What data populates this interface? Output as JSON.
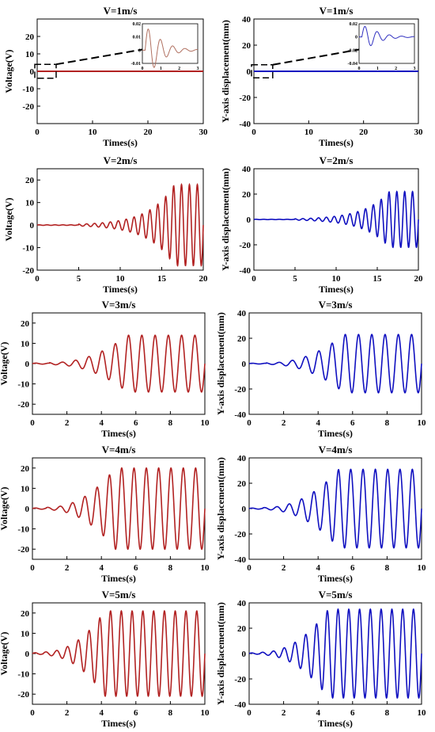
{
  "chart_data": [
    {
      "id": "v1-voltage",
      "type": "line",
      "title": "V=1m/s",
      "xlabel": "Times(s)",
      "ylabel": "Voltage(V)",
      "xlim": [
        0,
        30
      ],
      "ylim": [
        -30,
        30
      ],
      "xticks": [
        0,
        10,
        20,
        30
      ],
      "yticks": [
        -20,
        -10,
        0,
        10,
        20
      ],
      "series": [
        {
          "color": "#b22222",
          "kind": "flat",
          "amp_start": 0.0,
          "amp_end": 0.0,
          "freq": 1.0,
          "onset": 0
        }
      ],
      "inset": {
        "xlim": [
          0,
          3
        ],
        "ylim": [
          -0.01,
          0.02
        ],
        "xticks": [
          0,
          1,
          2,
          3
        ],
        "yticks": [
          -0.01,
          0,
          0.01,
          0.02
        ],
        "yticklabels": [
          "-0.01",
          "0",
          "0.01",
          "0.02"
        ],
        "color": "#b07060",
        "peak": 0.016,
        "decay": 1.4,
        "freq": 1.5
      },
      "zoom_box": {
        "x": [
          0,
          3
        ],
        "y": [
          -4,
          4
        ]
      }
    },
    {
      "id": "v1-disp",
      "type": "line",
      "title": "V=1m/s",
      "xlabel": "Times(s)",
      "ylabel": "Y-axis displacement(mm)",
      "xlim": [
        0,
        30
      ],
      "ylim": [
        -40,
        40
      ],
      "xticks": [
        0,
        10,
        20,
        30
      ],
      "yticks": [
        -40,
        -20,
        0,
        20,
        40
      ],
      "series": [
        {
          "color": "#1010c0",
          "kind": "flat",
          "amp_start": 0.0,
          "amp_end": 0.0,
          "freq": 1.0,
          "onset": 0
        }
      ],
      "inset": {
        "xlim": [
          0,
          3
        ],
        "ylim": [
          -0.04,
          0.02
        ],
        "xticks": [
          0,
          1,
          2,
          3
        ],
        "yticks": [
          -0.04,
          -0.02,
          0,
          0.02
        ],
        "yticklabels": [
          "-0.04",
          "-0.02",
          "0",
          "0.02"
        ],
        "color": "#3030c0",
        "peak": 0.016,
        "decay": 1.4,
        "freq": 1.5
      },
      "zoom_box": {
        "x": [
          0,
          3
        ],
        "y": [
          -5,
          5
        ]
      }
    },
    {
      "id": "v2-voltage",
      "type": "line",
      "title": "V=2m/s",
      "xlabel": "Times(s)",
      "ylabel": "Voltage(V)",
      "xlim": [
        0,
        20
      ],
      "ylim": [
        -20,
        25
      ],
      "xticks": [
        0,
        5,
        10,
        15,
        20
      ],
      "yticks": [
        -20,
        -10,
        0,
        10,
        20
      ],
      "series": [
        {
          "color": "#b22222",
          "kind": "growth",
          "amp_start": 0.4,
          "amp_end": 18,
          "freq": 1.05,
          "onset": 5,
          "growth": 0.33
        }
      ]
    },
    {
      "id": "v2-disp",
      "type": "line",
      "title": "V=2m/s",
      "xlabel": "Times(s)",
      "ylabel": "Y-axis displacement(mm)",
      "xlim": [
        0,
        20
      ],
      "ylim": [
        -40,
        40
      ],
      "xticks": [
        0,
        5,
        10,
        15,
        20
      ],
      "yticks": [
        -40,
        -20,
        0,
        20,
        40
      ],
      "series": [
        {
          "color": "#1010c0",
          "kind": "growth",
          "amp_start": 0.5,
          "amp_end": 22,
          "freq": 1.05,
          "onset": 5,
          "growth": 0.33
        }
      ]
    },
    {
      "id": "v3-voltage",
      "type": "line",
      "title": "V=3m/s",
      "xlabel": "Times(s)",
      "ylabel": "Voltage(V)",
      "xlim": [
        0,
        10
      ],
      "ylim": [
        -25,
        25
      ],
      "xticks": [
        0,
        2,
        4,
        6,
        8,
        10
      ],
      "yticks": [
        -20,
        -10,
        0,
        10,
        20
      ],
      "series": [
        {
          "color": "#b22222",
          "kind": "saturate",
          "amp_start": 0.5,
          "amp_end": 14,
          "freq": 1.3,
          "onset": 1.0,
          "t_sat": 5.5
        }
      ]
    },
    {
      "id": "v3-disp",
      "type": "line",
      "title": "V=3m/s",
      "xlabel": "Times(s)",
      "ylabel": "Y-axis displacement(mm)",
      "xlim": [
        0,
        10
      ],
      "ylim": [
        -40,
        40
      ],
      "xticks": [
        0,
        2,
        4,
        6,
        8,
        10
      ],
      "yticks": [
        -40,
        -20,
        0,
        20,
        40
      ],
      "series": [
        {
          "color": "#1010c0",
          "kind": "saturate",
          "amp_start": 0.6,
          "amp_end": 23,
          "freq": 1.3,
          "onset": 1.0,
          "t_sat": 5.5
        }
      ]
    },
    {
      "id": "v4-voltage",
      "type": "line",
      "title": "V=4m/s",
      "xlabel": "Times(s)",
      "ylabel": "Voltage(V)",
      "xlim": [
        0,
        10
      ],
      "ylim": [
        -25,
        25
      ],
      "xticks": [
        0,
        2,
        4,
        6,
        8,
        10
      ],
      "yticks": [
        -20,
        -10,
        0,
        10,
        20
      ],
      "series": [
        {
          "color": "#b22222",
          "kind": "saturate",
          "amp_start": 0.6,
          "amp_end": 20,
          "freq": 1.4,
          "onset": 0.8,
          "t_sat": 4.8
        }
      ]
    },
    {
      "id": "v4-disp",
      "type": "line",
      "title": "V=4m/s",
      "xlabel": "Times(s)",
      "ylabel": "Y-axis displacement(mm)",
      "xlim": [
        0,
        10
      ],
      "ylim": [
        -40,
        40
      ],
      "xticks": [
        0,
        2,
        4,
        6,
        8,
        10
      ],
      "yticks": [
        -40,
        -20,
        0,
        20,
        40
      ],
      "series": [
        {
          "color": "#1010c0",
          "kind": "saturate",
          "amp_start": 0.8,
          "amp_end": 31,
          "freq": 1.4,
          "onset": 0.8,
          "t_sat": 5.2
        }
      ]
    },
    {
      "id": "v5-voltage",
      "type": "line",
      "title": "V=5m/s",
      "xlabel": "Times(s)",
      "ylabel": "Voltage(V)",
      "xlim": [
        0,
        10
      ],
      "ylim": [
        -25,
        25
      ],
      "xticks": [
        0,
        2,
        4,
        6,
        8,
        10
      ],
      "yticks": [
        -20,
        -10,
        0,
        10,
        20
      ],
      "series": [
        {
          "color": "#b22222",
          "kind": "saturate",
          "amp_start": 0.8,
          "amp_end": 21,
          "freq": 1.6,
          "onset": 0.6,
          "t_sat": 4.2
        }
      ]
    },
    {
      "id": "v5-disp",
      "type": "line",
      "title": "V=5m/s",
      "xlabel": "Times(s)",
      "ylabel": "Y-axis displacement(mm)",
      "xlim": [
        0,
        10
      ],
      "ylim": [
        -40,
        40
      ],
      "xticks": [
        0,
        2,
        4,
        6,
        8,
        10
      ],
      "yticks": [
        -40,
        -20,
        0,
        20,
        40
      ],
      "series": [
        {
          "color": "#1010c0",
          "kind": "saturate",
          "amp_start": 1.0,
          "amp_end": 35,
          "freq": 1.6,
          "onset": 0.6,
          "t_sat": 4.6
        }
      ]
    }
  ]
}
